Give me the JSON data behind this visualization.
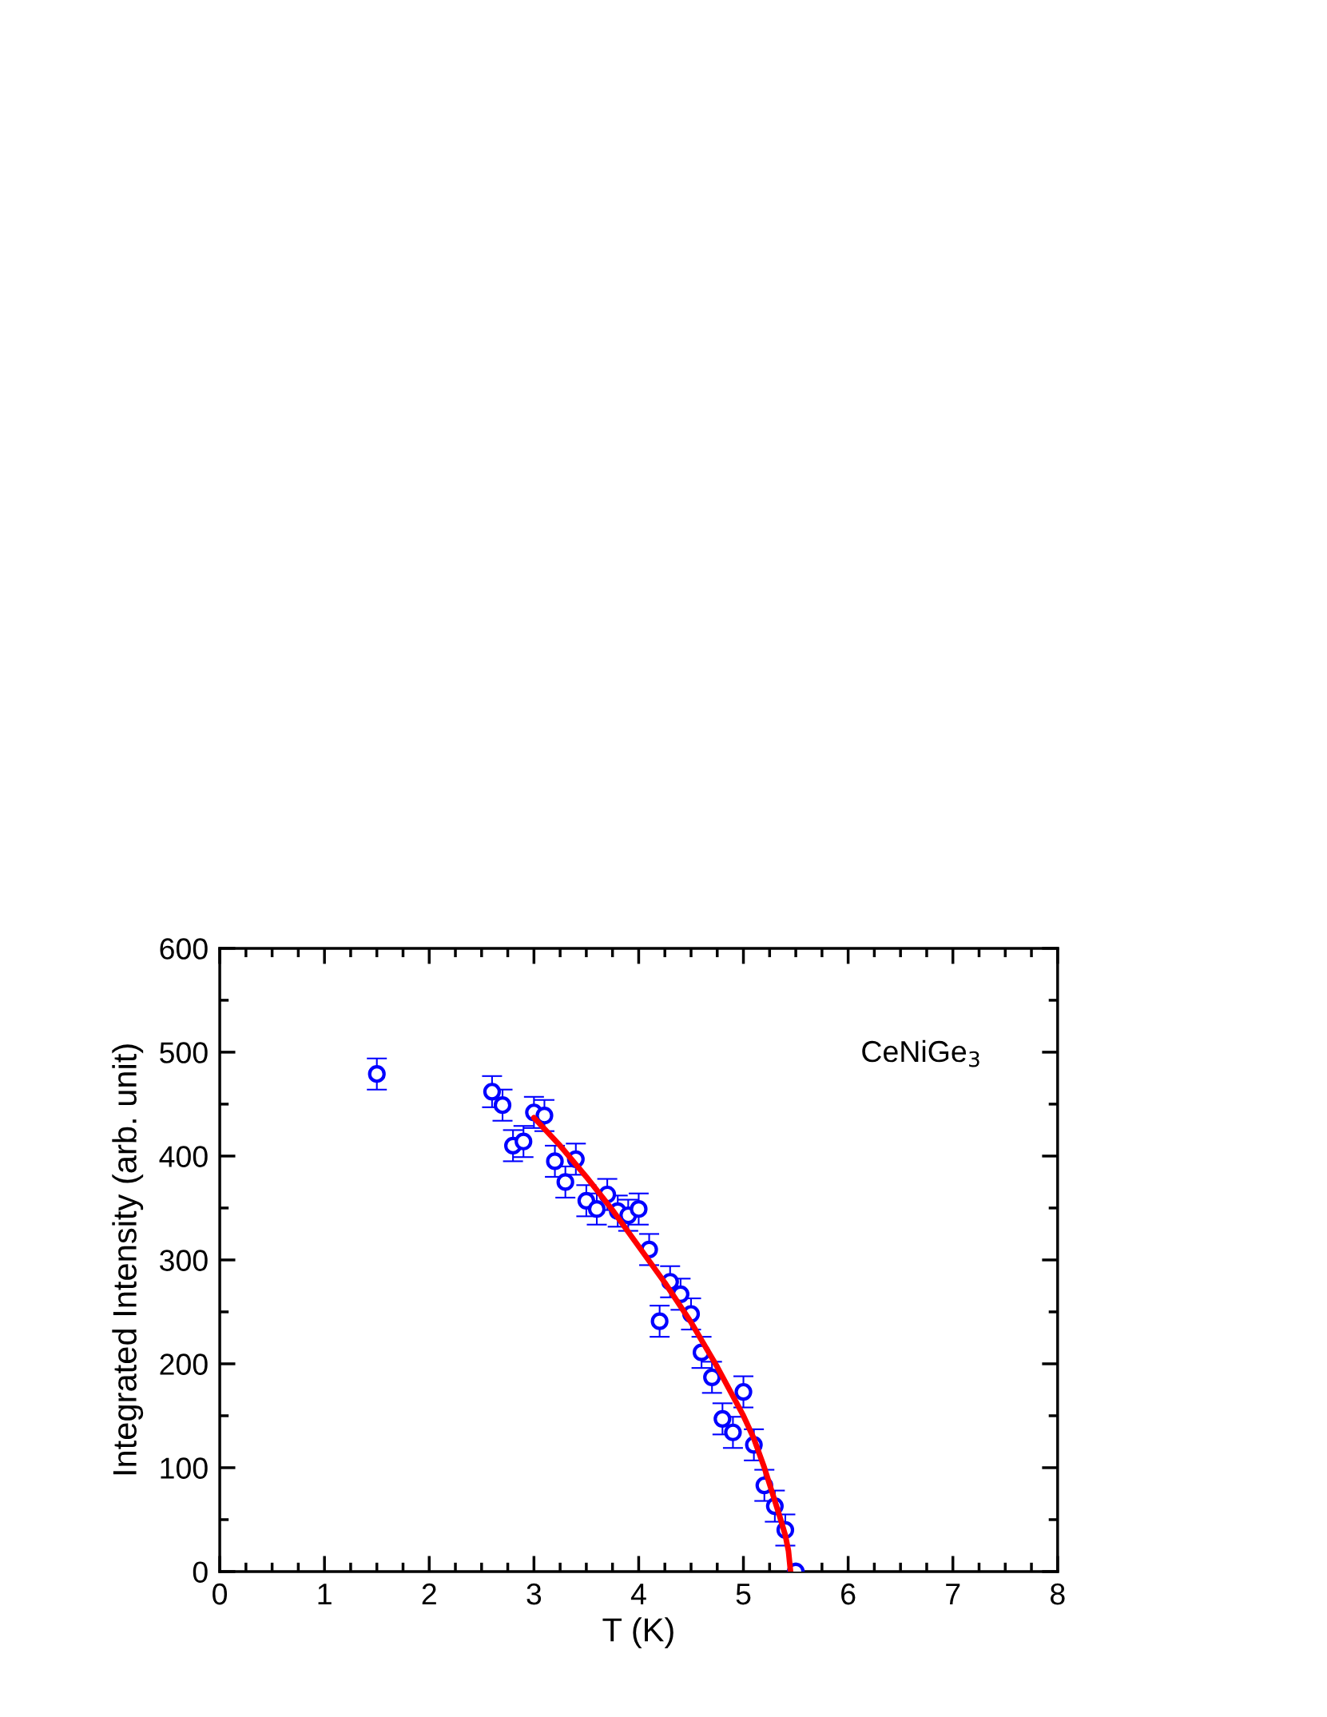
{
  "chart_data": {
    "type": "scatter",
    "xlabel": "T (K)",
    "ylabel": "Integrated Intensity (arb. unit)",
    "xlim": [
      0,
      8
    ],
    "xticks": [
      0,
      1,
      2,
      3,
      4,
      5,
      6,
      7,
      8
    ],
    "ylim": [
      0,
      600
    ],
    "yticks": [
      0,
      100,
      200,
      300,
      400,
      500,
      600
    ],
    "grid": false,
    "legend": false,
    "annotations": [
      "CeNiGe$_{3}$"
    ],
    "series": [
      {
        "color": "#0000ff",
        "marker": "circle",
        "x": [
          1.5,
          2.6,
          2.7,
          2.8,
          2.9,
          3.0,
          3.1,
          3.2,
          3.3,
          3.4,
          3.5,
          3.6,
          3.7,
          3.8,
          3.9,
          4.0,
          4.1,
          4.2,
          4.3,
          4.4,
          4.5,
          4.6,
          4.7,
          4.8,
          4.9,
          5.0,
          5.1,
          5.2,
          5.3,
          5.4,
          5.5
        ],
        "values": [
          479,
          462,
          449,
          410,
          414,
          442,
          439,
          395,
          375,
          397,
          357,
          349,
          363,
          347,
          343,
          349,
          310,
          241,
          279,
          267,
          248,
          211,
          187,
          147,
          134,
          173,
          122,
          83,
          63,
          40,
          0
        ],
        "errors": [
          15,
          15,
          15,
          15,
          15,
          15,
          15,
          15,
          15,
          15,
          15,
          15,
          15,
          15,
          15,
          15,
          15,
          15,
          15,
          15,
          15,
          15,
          15,
          15,
          15,
          15,
          15,
          15,
          15,
          15,
          null
        ]
      },
      {
        "type": "line",
        "color": "#ff0000",
        "marker": "none",
        "line_style": "solid",
        "x": [
          3.0,
          3.25,
          3.5,
          3.75,
          4.0,
          4.25,
          4.5,
          4.75,
          5.0,
          5.1,
          5.2,
          5.3,
          5.35,
          5.4,
          5.43,
          5.45
        ],
        "values": [
          437,
          410,
          380,
          348,
          313,
          278,
          240,
          197,
          150,
          128,
          100,
          68,
          52,
          35,
          20,
          0
        ]
      }
    ]
  }
}
